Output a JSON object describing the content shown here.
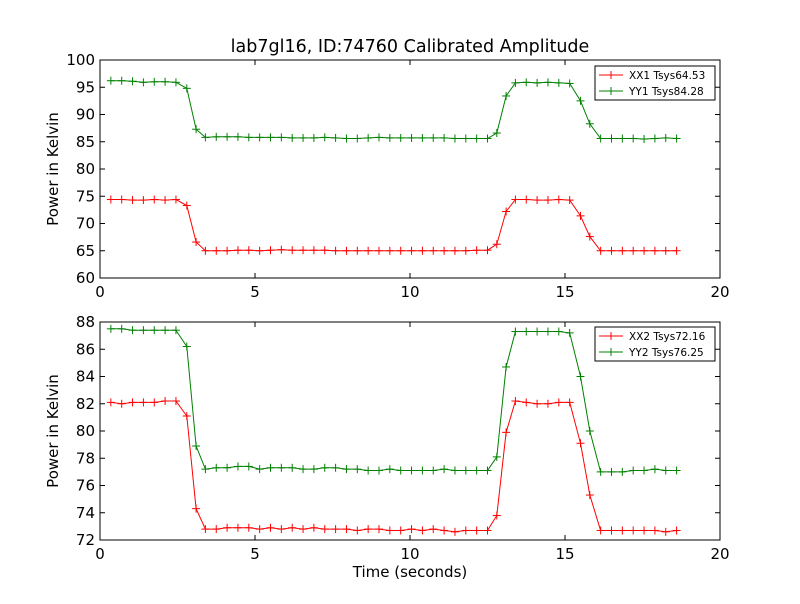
{
  "chart_data": [
    {
      "type": "line",
      "title": "lab7gl16, ID:74760 Calibrated Amplitude",
      "xlabel": "",
      "ylabel": "Power in Kelvin",
      "xlim": [
        0,
        20
      ],
      "ylim": [
        60,
        100
      ],
      "x_ticks": [
        "0",
        "5",
        "10",
        "15",
        "20"
      ],
      "y_ticks": [
        "60",
        "65",
        "70",
        "75",
        "80",
        "85",
        "90",
        "95",
        "100"
      ],
      "grid": false,
      "legend_position": "top-right",
      "x": [
        0.35,
        0.7,
        1.05,
        1.4,
        1.75,
        2.1,
        2.45,
        2.8,
        3.1,
        3.4,
        3.75,
        4.1,
        4.45,
        4.8,
        5.15,
        5.5,
        5.85,
        6.2,
        6.55,
        6.9,
        7.25,
        7.6,
        7.95,
        8.3,
        8.65,
        9.0,
        9.35,
        9.7,
        10.05,
        10.4,
        10.75,
        11.1,
        11.45,
        11.8,
        12.15,
        12.5,
        12.8,
        13.1,
        13.4,
        13.75,
        14.1,
        14.45,
        14.8,
        15.15,
        15.5,
        15.8,
        16.15,
        16.5,
        16.85,
        17.2,
        17.55,
        17.9,
        18.25,
        18.6
      ],
      "series": [
        {
          "name": "XX1 Tsys64.53",
          "color": "#ff0000",
          "values": [
            74.4,
            74.4,
            74.3,
            74.3,
            74.4,
            74.3,
            74.4,
            73.3,
            66.6,
            65.0,
            65.0,
            65.0,
            65.1,
            65.1,
            65.0,
            65.1,
            65.2,
            65.1,
            65.1,
            65.1,
            65.1,
            65.0,
            65.0,
            65.0,
            65.0,
            65.0,
            65.0,
            65.0,
            65.0,
            65.0,
            65.0,
            65.0,
            65.0,
            65.0,
            65.1,
            65.1,
            66.2,
            72.2,
            74.4,
            74.4,
            74.3,
            74.3,
            74.4,
            74.3,
            71.4,
            67.6,
            65.0,
            65.0,
            65.0,
            65.0,
            65.0,
            65.0,
            65.0,
            65.0
          ]
        },
        {
          "name": "YY1 Tsys84.28",
          "color": "#008000",
          "values": [
            96.2,
            96.2,
            96.1,
            95.9,
            96.0,
            96.0,
            95.9,
            94.8,
            87.3,
            85.8,
            85.9,
            85.9,
            85.9,
            85.8,
            85.8,
            85.8,
            85.8,
            85.7,
            85.7,
            85.7,
            85.8,
            85.7,
            85.6,
            85.6,
            85.7,
            85.8,
            85.7,
            85.7,
            85.7,
            85.7,
            85.7,
            85.7,
            85.6,
            85.6,
            85.6,
            85.6,
            86.6,
            93.4,
            95.8,
            95.9,
            95.8,
            95.9,
            95.8,
            95.7,
            92.5,
            88.3,
            85.6,
            85.6,
            85.6,
            85.6,
            85.5,
            85.6,
            85.7,
            85.6
          ]
        }
      ]
    },
    {
      "type": "line",
      "title": "",
      "xlabel": "Time (seconds)",
      "ylabel": "Power in Kelvin",
      "xlim": [
        0,
        20
      ],
      "ylim": [
        72,
        88
      ],
      "x_ticks": [
        "0",
        "5",
        "10",
        "15",
        "20"
      ],
      "y_ticks": [
        "72",
        "74",
        "76",
        "78",
        "80",
        "82",
        "84",
        "86",
        "88"
      ],
      "grid": false,
      "legend_position": "top-right",
      "x": [
        0.35,
        0.7,
        1.05,
        1.4,
        1.75,
        2.1,
        2.45,
        2.8,
        3.1,
        3.4,
        3.75,
        4.1,
        4.45,
        4.8,
        5.15,
        5.5,
        5.85,
        6.2,
        6.55,
        6.9,
        7.25,
        7.6,
        7.95,
        8.3,
        8.65,
        9.0,
        9.35,
        9.7,
        10.05,
        10.4,
        10.75,
        11.1,
        11.45,
        11.8,
        12.15,
        12.5,
        12.8,
        13.1,
        13.4,
        13.75,
        14.1,
        14.45,
        14.8,
        15.15,
        15.5,
        15.8,
        16.15,
        16.5,
        16.85,
        17.2,
        17.55,
        17.9,
        18.25,
        18.6
      ],
      "series": [
        {
          "name": "XX2 Tsys72.16",
          "color": "#ff0000",
          "values": [
            82.1,
            82.0,
            82.1,
            82.1,
            82.1,
            82.2,
            82.2,
            81.1,
            74.3,
            72.8,
            72.8,
            72.9,
            72.9,
            72.9,
            72.8,
            72.9,
            72.8,
            72.9,
            72.8,
            72.9,
            72.8,
            72.8,
            72.8,
            72.7,
            72.8,
            72.8,
            72.7,
            72.7,
            72.8,
            72.7,
            72.8,
            72.7,
            72.6,
            72.7,
            72.7,
            72.7,
            73.8,
            79.9,
            82.2,
            82.1,
            82.0,
            82.0,
            82.1,
            82.1,
            79.1,
            75.3,
            72.7,
            72.7,
            72.7,
            72.7,
            72.7,
            72.7,
            72.6,
            72.7
          ]
        },
        {
          "name": "YY2 Tsys76.25",
          "color": "#008000",
          "values": [
            87.5,
            87.5,
            87.4,
            87.4,
            87.4,
            87.4,
            87.4,
            86.2,
            78.9,
            77.2,
            77.3,
            77.3,
            77.4,
            77.4,
            77.2,
            77.3,
            77.3,
            77.3,
            77.2,
            77.2,
            77.3,
            77.3,
            77.2,
            77.2,
            77.1,
            77.1,
            77.2,
            77.1,
            77.1,
            77.1,
            77.1,
            77.2,
            77.1,
            77.1,
            77.1,
            77.1,
            78.1,
            84.7,
            87.3,
            87.3,
            87.3,
            87.3,
            87.3,
            87.2,
            84.0,
            80.0,
            77.0,
            77.0,
            77.0,
            77.1,
            77.1,
            77.2,
            77.1,
            77.1
          ]
        }
      ]
    }
  ]
}
